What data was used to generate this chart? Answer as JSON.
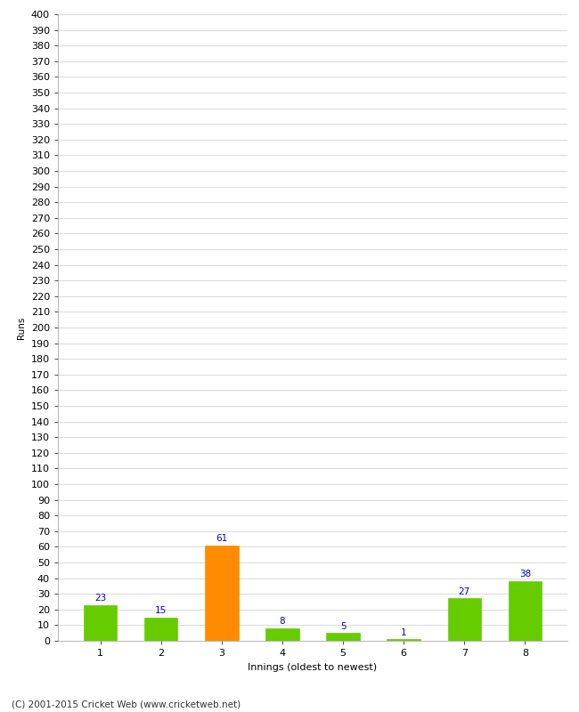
{
  "xlabel": "Innings (oldest to newest)",
  "ylabel": "Runs",
  "categories": [
    "1",
    "2",
    "3",
    "4",
    "5",
    "6",
    "7",
    "8"
  ],
  "values": [
    23,
    15,
    61,
    8,
    5,
    1,
    27,
    38
  ],
  "bar_colors": [
    "#66cc00",
    "#66cc00",
    "#ff8c00",
    "#66cc00",
    "#66cc00",
    "#66cc00",
    "#66cc00",
    "#66cc00"
  ],
  "label_color": "#0000cc",
  "ylim": [
    0,
    400
  ],
  "yticks": [
    0,
    10,
    20,
    30,
    40,
    50,
    60,
    70,
    80,
    90,
    100,
    110,
    120,
    130,
    140,
    150,
    160,
    170,
    180,
    190,
    200,
    210,
    220,
    230,
    240,
    250,
    260,
    270,
    280,
    290,
    300,
    310,
    320,
    330,
    340,
    350,
    360,
    370,
    380,
    390,
    400
  ],
  "background_color": "#ffffff",
  "grid_color": "#cccccc",
  "footer": "(C) 2001-2015 Cricket Web (www.cricketweb.net)",
  "bar_width": 0.55,
  "label_fontsize": 7.5,
  "axis_fontsize": 8,
  "ylabel_fontsize": 7.5,
  "xlabel_fontsize": 8,
  "footer_fontsize": 7.5
}
